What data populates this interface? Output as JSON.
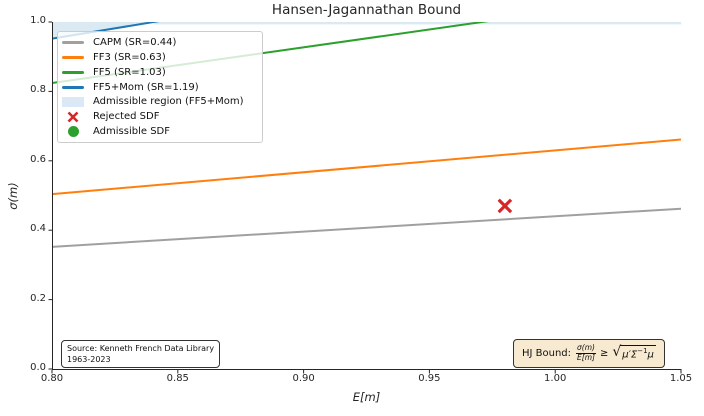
{
  "chart_data": {
    "type": "line",
    "title": "Hansen-Jagannathan Bound",
    "xlabel": "E[m]",
    "ylabel": "σ(m)",
    "xlim": [
      0.8,
      1.05
    ],
    "ylim": [
      0.0,
      1.0
    ],
    "grid": false,
    "legend_position": "upper left",
    "xticks": {
      "values": [
        0.8,
        0.85,
        0.9,
        0.95,
        1.0,
        1.05
      ],
      "labels": [
        "0.80",
        "0.85",
        "0.90",
        "0.95",
        "1.00",
        "1.05"
      ]
    },
    "yticks": {
      "values": [
        0.0,
        0.2,
        0.4,
        0.6,
        0.8,
        1.0
      ],
      "labels": [
        "0.0",
        "0.2",
        "0.4",
        "0.6",
        "0.8",
        "1.0"
      ]
    },
    "series": [
      {
        "name": "CAPM (SR=0.44)",
        "sharpe_ratio": 0.44,
        "color": "#a0a0a0",
        "x": [
          0.8,
          1.05
        ],
        "y": [
          0.352,
          0.462
        ]
      },
      {
        "name": "FF3 (SR=0.63)",
        "sharpe_ratio": 0.63,
        "color": "#ff7f0e",
        "x": [
          0.8,
          1.05
        ],
        "y": [
          0.504,
          0.6615
        ]
      },
      {
        "name": "FF5 (SR=1.03)",
        "sharpe_ratio": 1.03,
        "color": "#2ca02c",
        "x": [
          0.8,
          1.05
        ],
        "y": [
          0.824,
          1.0815
        ]
      },
      {
        "name": "FF5+Mom (SR=1.19)",
        "sharpe_ratio": 1.19,
        "color": "#1f77b4",
        "x": [
          0.8,
          1.05
        ],
        "y": [
          0.952,
          1.2495
        ]
      }
    ],
    "region": {
      "label": "Admissible region (FF5+Mom)",
      "above_series_index": 3,
      "color": "#1f77b4",
      "opacity": 0.16
    },
    "markers": [
      {
        "label": "Rejected SDF",
        "shape": "x",
        "color": "#d62728",
        "x": 0.98,
        "y": 0.47
      }
    ]
  },
  "legend": {
    "items": [
      {
        "label": "CAPM (SR=0.44)",
        "swatch": "line",
        "color": "#a0a0a0"
      },
      {
        "label": "FF3 (SR=0.63)",
        "swatch": "line",
        "color": "#ff7f0e"
      },
      {
        "label": "FF5 (SR=1.03)",
        "swatch": "line",
        "color": "#2ca02c"
      },
      {
        "label": "FF5+Mom (SR=1.19)",
        "swatch": "line",
        "color": "#1f77b4"
      },
      {
        "label": "Admissible region (FF5+Mom)",
        "swatch": "patch",
        "color": "#dbe8f6"
      },
      {
        "label": "Rejected SDF",
        "swatch": "x",
        "color": "#d62728"
      },
      {
        "label": "Admissible SDF",
        "swatch": "circle",
        "color": "#2ca02c"
      }
    ]
  },
  "annotations": {
    "source_box": {
      "line1": "Source: Kenneth French Data Library",
      "line2": "1963-2023"
    },
    "hj_box": {
      "prefix": "HJ Bound:",
      "frac_num": "σ(m)",
      "frac_den": "E[m]",
      "relation": "≥",
      "radicand_head": "μ′Σ",
      "radicand_sup": "−1",
      "radicand_tail": "μ",
      "bg_color": "#f8ead1"
    }
  }
}
